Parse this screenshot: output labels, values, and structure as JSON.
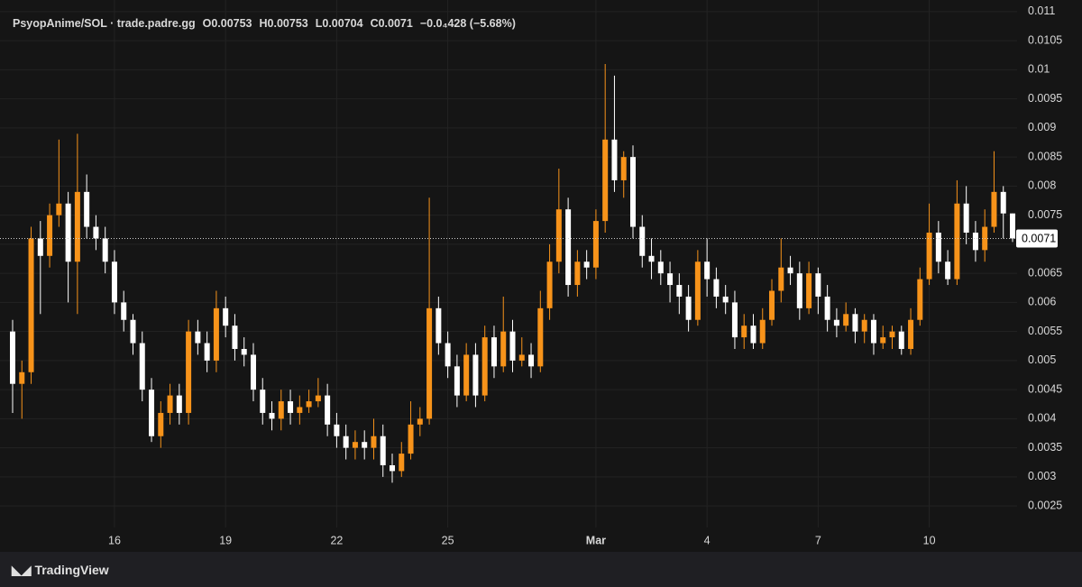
{
  "chart_data": {
    "type": "candlestick",
    "title": "PsyopAnime/SOL · trade.padre.gg",
    "ohlc_legend": [
      "O0.00753",
      "H0.00753",
      "L0.00704",
      "C0.0071",
      "−0.0₄428 (−5.68%)"
    ],
    "watermark": "TradingView",
    "categories": [
      null,
      null,
      null,
      null,
      null,
      null,
      null,
      null,
      null,
      null,
      null,
      "16",
      null,
      null,
      null,
      null,
      null,
      null,
      null,
      null,
      null,
      null,
      null,
      "19",
      null,
      null,
      null,
      null,
      null,
      null,
      null,
      null,
      null,
      null,
      null,
      "22",
      null,
      null,
      null,
      null,
      null,
      null,
      null,
      null,
      null,
      null,
      null,
      "25",
      null,
      null,
      null,
      null,
      null,
      null,
      null,
      null,
      null,
      null,
      null,
      null,
      null,
      null,
      null,
      "Mar",
      null,
      null,
      null,
      null,
      null,
      null,
      null,
      null,
      null,
      null,
      null,
      "4",
      null,
      null,
      null,
      null,
      null,
      null,
      null,
      null,
      null,
      null,
      null,
      "7",
      null,
      null,
      null,
      null,
      null,
      null,
      null,
      null,
      null,
      null,
      null,
      "10",
      null,
      null,
      null,
      null,
      null,
      null,
      null,
      null,
      null
    ],
    "open": [
      0.0055,
      0.0046,
      0.0048,
      0.0071,
      0.0068,
      0.0075,
      0.0077,
      0.0067,
      0.0079,
      0.0073,
      0.0071,
      0.0067,
      0.006,
      0.0057,
      0.0053,
      0.0045,
      0.0037,
      0.0041,
      0.0044,
      0.0041,
      0.0055,
      0.0053,
      0.005,
      0.0059,
      0.0056,
      0.0052,
      0.0051,
      0.0045,
      0.0041,
      0.004,
      0.0043,
      0.0041,
      0.0042,
      0.0043,
      0.0044,
      0.0039,
      0.0037,
      0.0035,
      0.0036,
      0.0035,
      0.0037,
      0.0032,
      0.0031,
      0.0034,
      0.0039,
      0.004,
      0.0059,
      0.0053,
      0.0049,
      0.0044,
      0.0051,
      0.0044,
      0.0054,
      0.0049,
      0.0055,
      0.005,
      0.0051,
      0.0049,
      0.0059,
      0.0067,
      0.0076,
      0.0063,
      0.0067,
      0.0066,
      0.0074,
      0.0088,
      0.0081,
      0.0085,
      0.0073,
      0.0068,
      0.0067,
      0.0065,
      0.0063,
      0.0061,
      0.0057,
      0.0067,
      0.0064,
      0.0061,
      0.006,
      0.0054,
      0.0056,
      0.0053,
      0.0057,
      0.0062,
      0.0066,
      0.0065,
      0.0059,
      0.0065,
      0.0061,
      0.0057,
      0.0056,
      0.0058,
      0.0055,
      0.0057,
      0.0053,
      0.0054,
      0.0055,
      0.0052,
      0.0057,
      0.0064,
      0.0072,
      0.0067,
      0.0064,
      0.0077,
      0.0072,
      0.0069,
      0.0073,
      0.0079,
      0.00753
    ],
    "high": [
      0.0057,
      0.005,
      0.0073,
      0.0074,
      0.0077,
      0.0088,
      0.0079,
      0.0089,
      0.0082,
      0.0075,
      0.0073,
      0.0069,
      0.0062,
      0.0058,
      0.0055,
      0.0047,
      0.0043,
      0.0046,
      0.0046,
      0.0057,
      0.0057,
      0.0055,
      0.0062,
      0.0061,
      0.0058,
      0.0054,
      0.0053,
      0.0047,
      0.0043,
      0.0045,
      0.0045,
      0.0044,
      0.0045,
      0.0047,
      0.0046,
      0.0041,
      0.0039,
      0.0038,
      0.0038,
      0.004,
      0.0039,
      0.0034,
      0.0036,
      0.0043,
      0.0042,
      0.0078,
      0.0061,
      0.0055,
      0.0051,
      0.0053,
      0.0053,
      0.0056,
      0.0056,
      0.0061,
      0.0057,
      0.0054,
      0.0053,
      0.0062,
      0.007,
      0.0083,
      0.0078,
      0.0069,
      0.0069,
      0.0076,
      0.0101,
      0.0099,
      0.0086,
      0.0087,
      0.0075,
      0.0071,
      0.0069,
      0.0067,
      0.0065,
      0.0063,
      0.0069,
      0.0071,
      0.0066,
      0.0063,
      0.0062,
      0.0058,
      0.0058,
      0.0059,
      0.0064,
      0.0071,
      0.0068,
      0.0067,
      0.0067,
      0.0066,
      0.0063,
      0.0059,
      0.006,
      0.0059,
      0.0058,
      0.0058,
      0.0056,
      0.0056,
      0.0056,
      0.0059,
      0.0066,
      0.0077,
      0.0074,
      0.0069,
      0.0081,
      0.008,
      0.0074,
      0.0076,
      0.0086,
      0.008,
      0.00753
    ],
    "low": [
      0.0041,
      0.004,
      0.0046,
      0.0058,
      0.0066,
      0.0073,
      0.006,
      0.0058,
      0.0071,
      0.0069,
      0.0065,
      0.0058,
      0.0055,
      0.0051,
      0.0043,
      0.0036,
      0.0035,
      0.0039,
      0.0039,
      0.0039,
      0.0051,
      0.0048,
      0.0048,
      0.0054,
      0.005,
      0.0049,
      0.0043,
      0.0039,
      0.0038,
      0.0038,
      0.0039,
      0.0039,
      0.0041,
      0.0042,
      0.0037,
      0.0035,
      0.0033,
      0.0033,
      0.0033,
      0.0033,
      0.003,
      0.0029,
      0.003,
      0.0033,
      0.0037,
      0.0039,
      0.0051,
      0.0047,
      0.0042,
      0.0043,
      0.0042,
      0.0043,
      0.0047,
      0.0048,
      0.0048,
      0.0049,
      0.0047,
      0.0048,
      0.0057,
      0.0065,
      0.0061,
      0.0061,
      0.0064,
      0.0064,
      0.0072,
      0.0079,
      0.0078,
      0.0071,
      0.0066,
      0.0064,
      0.0063,
      0.006,
      0.0058,
      0.0055,
      0.0056,
      0.0061,
      0.0059,
      0.0058,
      0.0052,
      0.0052,
      0.0052,
      0.0052,
      0.0056,
      0.006,
      0.0063,
      0.0057,
      0.0058,
      0.0058,
      0.0055,
      0.0054,
      0.0055,
      0.0053,
      0.0053,
      0.0051,
      0.0052,
      0.0052,
      0.0051,
      0.0051,
      0.0056,
      0.0063,
      0.0065,
      0.0063,
      0.0063,
      0.007,
      0.0067,
      0.0067,
      0.0072,
      0.0071,
      0.00704
    ],
    "close": [
      0.0046,
      0.0048,
      0.0071,
      0.0068,
      0.0075,
      0.0077,
      0.0067,
      0.0079,
      0.0073,
      0.0071,
      0.0067,
      0.006,
      0.0057,
      0.0053,
      0.0045,
      0.0037,
      0.0041,
      0.0044,
      0.0041,
      0.0055,
      0.0053,
      0.005,
      0.0059,
      0.0056,
      0.0052,
      0.0051,
      0.0045,
      0.0041,
      0.004,
      0.0043,
      0.0041,
      0.0042,
      0.0043,
      0.0044,
      0.0039,
      0.0037,
      0.0035,
      0.0036,
      0.0035,
      0.0037,
      0.0032,
      0.0031,
      0.0034,
      0.0039,
      0.004,
      0.0059,
      0.0053,
      0.0049,
      0.0044,
      0.0051,
      0.0044,
      0.0054,
      0.0049,
      0.0055,
      0.005,
      0.0051,
      0.0049,
      0.0059,
      0.0067,
      0.0076,
      0.0063,
      0.0067,
      0.0066,
      0.0074,
      0.0088,
      0.0081,
      0.0085,
      0.0073,
      0.0068,
      0.0067,
      0.0065,
      0.0063,
      0.0061,
      0.0057,
      0.0067,
      0.0064,
      0.0061,
      0.006,
      0.0054,
      0.0056,
      0.0053,
      0.0057,
      0.0062,
      0.0066,
      0.0065,
      0.0059,
      0.0065,
      0.0061,
      0.0057,
      0.0056,
      0.0058,
      0.0055,
      0.0057,
      0.0053,
      0.0054,
      0.0055,
      0.0052,
      0.0057,
      0.0064,
      0.0072,
      0.0067,
      0.0064,
      0.0077,
      0.0072,
      0.0069,
      0.0073,
      0.0079,
      0.00753,
      0.0071
    ],
    "up_color": "#f7931a",
    "down_color": "#ffffff",
    "last_price": 0.0071,
    "ylim": [
      0.00213,
      0.0112
    ],
    "yticks": [
      0.0025,
      0.003,
      0.0035,
      0.004,
      0.0045,
      0.005,
      0.0055,
      0.006,
      0.0065,
      0.007,
      0.0075,
      0.008,
      0.0085,
      0.009,
      0.0095,
      0.01,
      0.0105,
      0.011
    ],
    "grid": true
  }
}
